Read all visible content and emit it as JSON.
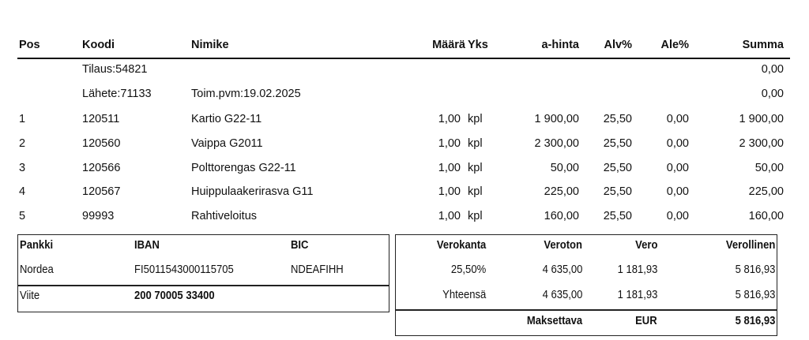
{
  "columns": {
    "pos": "Pos",
    "koodi": "Koodi",
    "nimike": "Nimike",
    "maara": "Määrä",
    "yks": "Yks",
    "ahinta": "a-hinta",
    "alv": "Alv%",
    "ale": "Ale%",
    "summa": "Summa"
  },
  "info_rows": [
    {
      "koodi": "Tilaus:54821",
      "nimike": "",
      "summa": "0,00"
    },
    {
      "koodi": "Lähete:71133",
      "nimike": "Toim.pvm:19.02.2025",
      "summa": "0,00"
    }
  ],
  "items": [
    {
      "pos": "1",
      "koodi": "120511",
      "nimike": "Kartio G22-11",
      "maara": "1,00",
      "yks": "kpl",
      "ahinta": "1 900,00",
      "alv": "25,50",
      "ale": "0,00",
      "summa": "1 900,00"
    },
    {
      "pos": "2",
      "koodi": "120560",
      "nimike": "Vaippa G2011",
      "maara": "1,00",
      "yks": "kpl",
      "ahinta": "2 300,00",
      "alv": "25,50",
      "ale": "0,00",
      "summa": "2 300,00"
    },
    {
      "pos": "3",
      "koodi": "120566",
      "nimike": "Polttorengas G22-11",
      "maara": "1,00",
      "yks": "kpl",
      "ahinta": "50,00",
      "alv": "25,50",
      "ale": "0,00",
      "summa": "50,00"
    },
    {
      "pos": "4",
      "koodi": "120567",
      "nimike": "Huippulaakerirasva G11",
      "maara": "1,00",
      "yks": "kpl",
      "ahinta": "225,00",
      "alv": "25,50",
      "ale": "0,00",
      "summa": "225,00"
    },
    {
      "pos": "5",
      "koodi": "99993",
      "nimike": "Rahtiveloitus",
      "maara": "1,00",
      "yks": "kpl",
      "ahinta": "160,00",
      "alv": "25,50",
      "ale": "0,00",
      "summa": "160,00"
    }
  ],
  "bank": {
    "headers": {
      "pankki": "Pankki",
      "iban": "IBAN",
      "bic": "BIC"
    },
    "pankki": "Nordea",
    "iban": "FI5011543000115705",
    "bic": "NDEAFIHH",
    "viite_label": "Viite",
    "viite": "200 70005 33400"
  },
  "tax": {
    "headers": {
      "verokanta": "Verokanta",
      "veroton": "Veroton",
      "vero": "Vero",
      "verollinen": "Verollinen"
    },
    "rows": [
      {
        "verokanta": "25,50%",
        "veroton": "4 635,00",
        "vero": "1 181,93",
        "verollinen": "5 816,93"
      },
      {
        "verokanta": "Yhteensä",
        "veroton": "4 635,00",
        "vero": "1 181,93",
        "verollinen": "5 816,93"
      }
    ],
    "maksettava_label": "Maksettava",
    "currency": "EUR",
    "total": "5 816,93"
  }
}
